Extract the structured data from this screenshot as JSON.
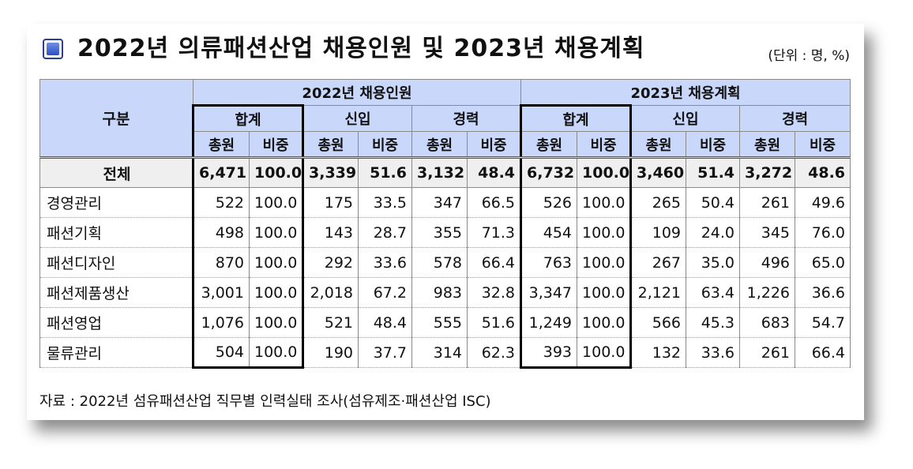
{
  "title": "2022년 의류패션산업 채용인원 및 2023년 채용계획",
  "unit": "(단위 : 명, %)",
  "header": {
    "corner": "구분",
    "group_2022": "2022년 채용인원",
    "group_2023": "2023년 채용계획",
    "sub_total": "합계",
    "sub_new": "신입",
    "sub_career": "경력",
    "col_count": "총원",
    "col_ratio": "비중"
  },
  "rows": [
    {
      "label": "전체",
      "v": [
        "6,471",
        "100.0",
        "3,339",
        "51.6",
        "3,132",
        "48.4",
        "6,732",
        "100.0",
        "3,460",
        "51.4",
        "3,272",
        "48.6"
      ]
    },
    {
      "label": "경영관리",
      "v": [
        "522",
        "100.0",
        "175",
        "33.5",
        "347",
        "66.5",
        "526",
        "100.0",
        "265",
        "50.4",
        "261",
        "49.6"
      ]
    },
    {
      "label": "패션기획",
      "v": [
        "498",
        "100.0",
        "143",
        "28.7",
        "355",
        "71.3",
        "454",
        "100.0",
        "109",
        "24.0",
        "345",
        "76.0"
      ]
    },
    {
      "label": "패션디자인",
      "v": [
        "870",
        "100.0",
        "292",
        "33.6",
        "578",
        "66.4",
        "763",
        "100.0",
        "267",
        "35.0",
        "496",
        "65.0"
      ]
    },
    {
      "label": "패션제품생산",
      "v": [
        "3,001",
        "100.0",
        "2,018",
        "67.2",
        "983",
        "32.8",
        "3,347",
        "100.0",
        "2,121",
        "63.4",
        "1,226",
        "36.6"
      ]
    },
    {
      "label": "패션영업",
      "v": [
        "1,076",
        "100.0",
        "521",
        "48.4",
        "555",
        "51.6",
        "1,249",
        "100.0",
        "566",
        "45.3",
        "683",
        "54.7"
      ]
    },
    {
      "label": "물류관리",
      "v": [
        "504",
        "100.0",
        "190",
        "37.7",
        "314",
        "62.3",
        "393",
        "100.0",
        "132",
        "33.6",
        "261",
        "66.4"
      ]
    }
  ],
  "source": "자료 : 2022년 섬유패션산업 직무별 인력실태 조사(섬유제조·패션산업 ISC)"
}
